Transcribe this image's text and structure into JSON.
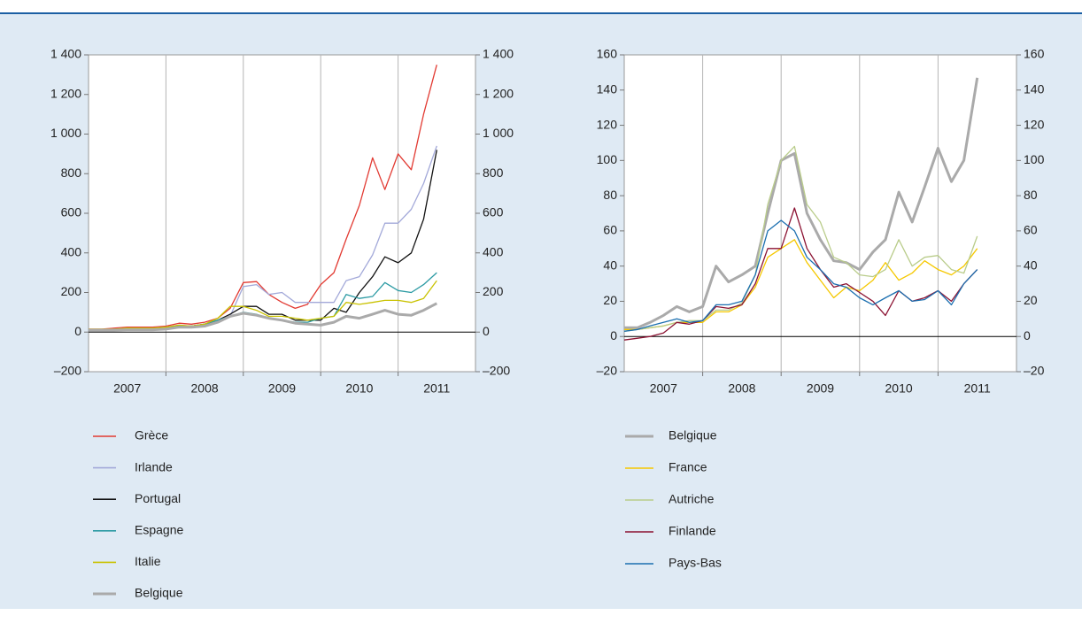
{
  "chart_data": [
    {
      "type": "line",
      "x": [
        2007,
        2007.17,
        2007.33,
        2007.5,
        2007.67,
        2007.83,
        2008,
        2008.17,
        2008.33,
        2008.5,
        2008.67,
        2008.83,
        2009,
        2009.17,
        2009.33,
        2009.5,
        2009.67,
        2009.83,
        2010,
        2010.17,
        2010.33,
        2010.5,
        2010.67,
        2010.83,
        2011,
        2011.17,
        2011.33,
        2011.5
      ],
      "xlim": [
        2007,
        2012
      ],
      "xticks": [
        {
          "value": 2007.5,
          "label": "2007"
        },
        {
          "value": 2008.5,
          "label": "2008"
        },
        {
          "value": 2009.5,
          "label": "2009"
        },
        {
          "value": 2010.5,
          "label": "2010"
        },
        {
          "value": 2011.5,
          "label": "2011"
        }
      ],
      "ylim": [
        -200,
        1400
      ],
      "yticks": [
        {
          "value": -200,
          "label": "–200"
        },
        0,
        200,
        400,
        600,
        800,
        {
          "value": 1000,
          "label": "1 000"
        },
        {
          "value": 1200,
          "label": "1 200"
        },
        {
          "value": 1400,
          "label": "1 400"
        }
      ],
      "mirror_y": true,
      "series": [
        {
          "name": "Grèce",
          "color": "#e23a32",
          "values": [
            15,
            15,
            20,
            25,
            25,
            25,
            30,
            45,
            40,
            50,
            70,
            120,
            250,
            255,
            190,
            150,
            120,
            140,
            240,
            300,
            470,
            640,
            880,
            720,
            900,
            820,
            1100,
            1350
          ]
        },
        {
          "name": "Irlande",
          "color": "#a3a9d9",
          "values": [
            10,
            10,
            15,
            20,
            20,
            20,
            25,
            35,
            30,
            40,
            50,
            80,
            230,
            240,
            190,
            200,
            150,
            150,
            150,
            150,
            260,
            280,
            390,
            550,
            550,
            620,
            750,
            940
          ]
        },
        {
          "name": "Portugal",
          "color": "#111111",
          "values": [
            10,
            10,
            12,
            15,
            15,
            15,
            20,
            30,
            30,
            40,
            60,
            90,
            130,
            130,
            90,
            90,
            60,
            60,
            60,
            120,
            100,
            200,
            280,
            380,
            350,
            400,
            570,
            920
          ]
        },
        {
          "name": "Espagne",
          "color": "#2b9aa3",
          "values": [
            10,
            10,
            12,
            15,
            15,
            15,
            20,
            30,
            30,
            40,
            60,
            80,
            100,
            90,
            70,
            60,
            50,
            50,
            70,
            80,
            190,
            170,
            180,
            250,
            210,
            200,
            240,
            300
          ]
        },
        {
          "name": "Italie",
          "color": "#c9c200",
          "values": [
            15,
            15,
            15,
            20,
            20,
            20,
            25,
            35,
            30,
            40,
            70,
            130,
            130,
            110,
            80,
            80,
            70,
            60,
            70,
            80,
            150,
            140,
            150,
            160,
            160,
            150,
            170,
            260
          ]
        },
        {
          "name": "Belgique",
          "color": "#aaaaaa",
          "width": 3,
          "values": [
            10,
            10,
            10,
            12,
            12,
            12,
            15,
            25,
            25,
            30,
            50,
            80,
            95,
            85,
            70,
            60,
            45,
            40,
            35,
            50,
            80,
            70,
            90,
            110,
            90,
            85,
            110,
            145
          ]
        }
      ]
    },
    {
      "type": "line",
      "x": [
        2007,
        2007.17,
        2007.33,
        2007.5,
        2007.67,
        2007.83,
        2008,
        2008.17,
        2008.33,
        2008.5,
        2008.67,
        2008.83,
        2009,
        2009.17,
        2009.33,
        2009.5,
        2009.67,
        2009.83,
        2010,
        2010.17,
        2010.33,
        2010.5,
        2010.67,
        2010.83,
        2011,
        2011.17,
        2011.33,
        2011.5
      ],
      "xlim": [
        2007,
        2012
      ],
      "xticks": [
        {
          "value": 2007.5,
          "label": "2007"
        },
        {
          "value": 2008.5,
          "label": "2008"
        },
        {
          "value": 2009.5,
          "label": "2009"
        },
        {
          "value": 2010.5,
          "label": "2010"
        },
        {
          "value": 2011.5,
          "label": "2011"
        }
      ],
      "ylim": [
        -20,
        160
      ],
      "yticks": [
        {
          "value": -20,
          "label": "–20"
        },
        0,
        20,
        40,
        60,
        80,
        100,
        120,
        140,
        160
      ],
      "mirror_y": true,
      "series": [
        {
          "name": "Belgique",
          "color": "#aaaaaa",
          "width": 3,
          "values": [
            5,
            5,
            8,
            12,
            17,
            14,
            17,
            40,
            31,
            35,
            40,
            70,
            100,
            104,
            70,
            55,
            43,
            42,
            38,
            48,
            55,
            82,
            65,
            85,
            107,
            88,
            100,
            147
          ]
        },
        {
          "name": "France",
          "color": "#f5c800",
          "values": [
            4,
            4,
            5,
            6,
            8,
            8,
            8,
            14,
            14,
            18,
            28,
            45,
            50,
            55,
            42,
            32,
            22,
            28,
            26,
            32,
            42,
            32,
            36,
            43,
            38,
            35,
            40,
            50
          ]
        },
        {
          "name": "Autriche",
          "color": "#b9cc8a",
          "values": [
            3,
            4,
            5,
            6,
            8,
            9,
            9,
            15,
            15,
            19,
            35,
            75,
            100,
            108,
            75,
            65,
            45,
            42,
            35,
            34,
            38,
            55,
            40,
            45,
            46,
            38,
            36,
            57
          ]
        },
        {
          "name": "Finlande",
          "color": "#8b1232",
          "values": [
            -2,
            -1,
            0,
            2,
            8,
            7,
            9,
            17,
            16,
            18,
            30,
            50,
            50,
            73,
            50,
            38,
            28,
            30,
            25,
            20,
            12,
            26,
            20,
            22,
            26,
            20,
            30,
            38
          ]
        },
        {
          "name": "Pays-Bas",
          "color": "#1b6fb0",
          "values": [
            3,
            4,
            6,
            8,
            10,
            8,
            9,
            18,
            18,
            20,
            35,
            60,
            66,
            60,
            45,
            38,
            30,
            28,
            22,
            18,
            22,
            26,
            20,
            21,
            26,
            18,
            30,
            38
          ]
        }
      ]
    }
  ]
}
